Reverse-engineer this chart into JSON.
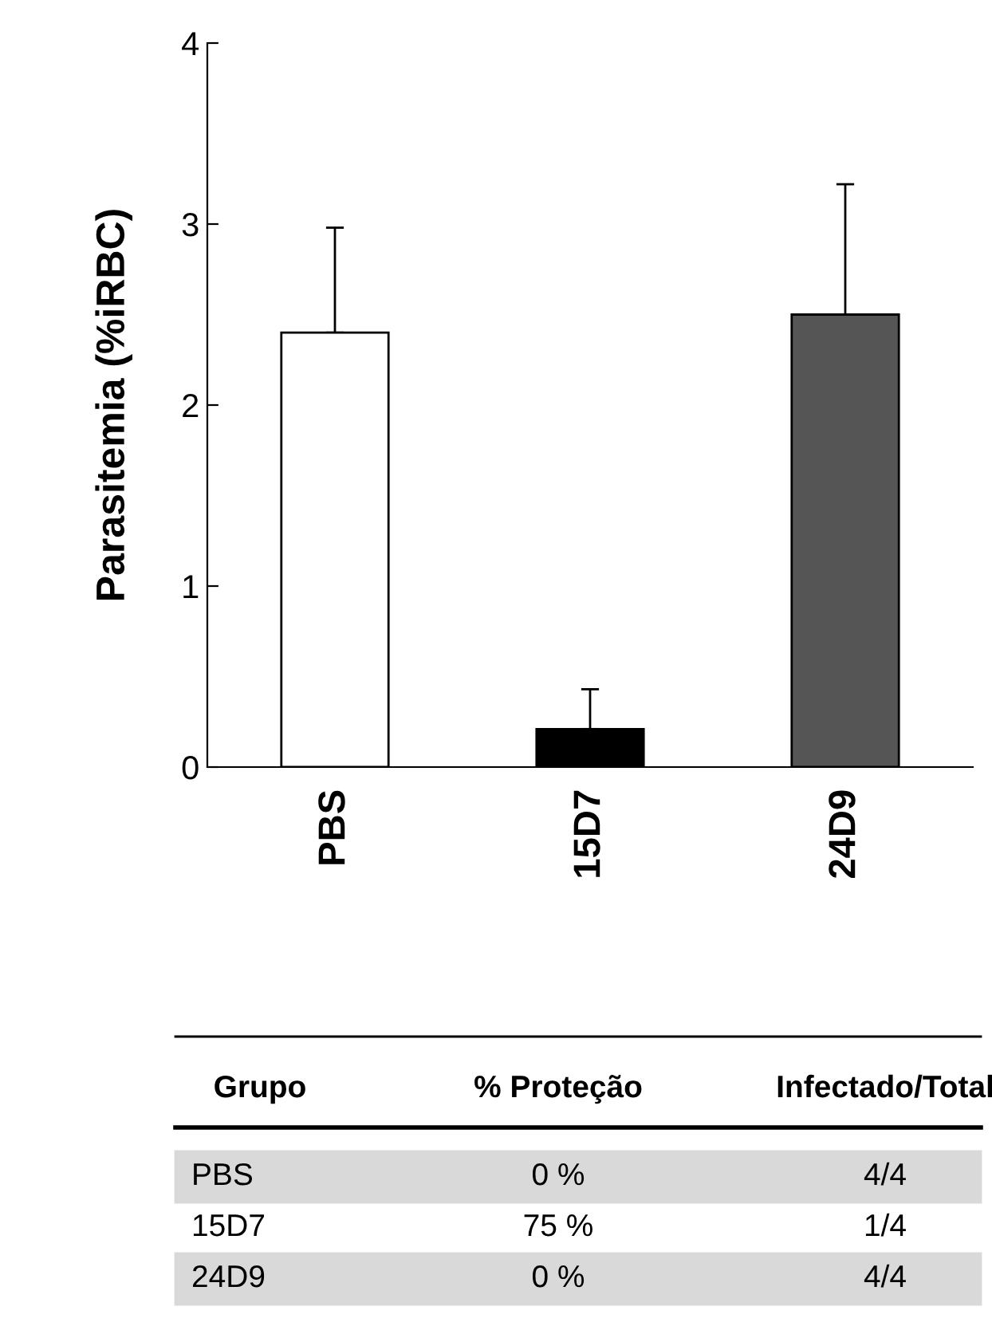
{
  "chart_data": {
    "type": "bar",
    "ylabel": "Parasitemia (%iRBC)",
    "categories": [
      "PBS",
      "15D7",
      "24D9"
    ],
    "values": [
      2.4,
      0.21,
      2.5
    ],
    "colors": [
      "#ffffff",
      "#000000",
      "#555555"
    ],
    "errors": [
      [
        2.4,
        2.98
      ],
      [
        0.21,
        0.43
      ],
      [
        2.5,
        3.22
      ]
    ],
    "ylim": [
      0,
      4
    ],
    "yticks": [
      0,
      1,
      2,
      3,
      4
    ],
    "grid": false,
    "legend": false,
    "annotations": [
      "Grupo",
      "% Proteção",
      "Infectado/Total",
      "PBS",
      "0 %",
      "4/4",
      "15D7",
      "75 %",
      "1/4",
      "24D9",
      "0 %",
      "4/4"
    ]
  }
}
